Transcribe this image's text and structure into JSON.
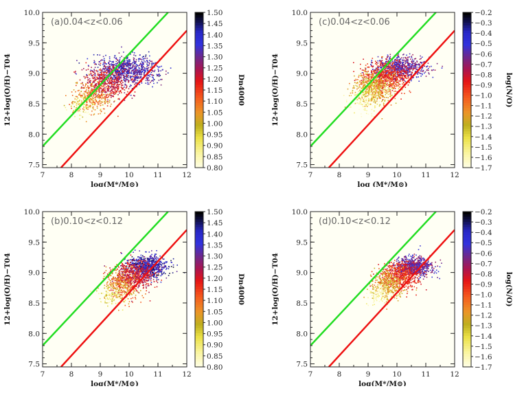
{
  "chart_data": [
    {
      "id": "a",
      "type": "scatter",
      "annotation": "(a)0.04<z<0.06",
      "xlabel": "log(M*/M⊙)",
      "ylabel": "12+log(O/H)−T04",
      "xlim": [
        7,
        12
      ],
      "ylim": [
        7.45,
        10.0
      ],
      "xticks": [
        "7",
        "8",
        "9",
        "10",
        "11",
        "12"
      ],
      "yticks": [
        "7.5",
        "8.0",
        "8.5",
        "9.0",
        "9.5",
        "10.0"
      ],
      "colorbar": {
        "label": "Dn4000",
        "min": 0.8,
        "max": 1.5,
        "ticks": [
          "1.50",
          "1.45",
          "1.40",
          "1.35",
          "1.30",
          "1.25",
          "1.20",
          "1.15",
          "1.10",
          "1.05",
          "1.00",
          "0.95",
          "0.90",
          "0.85",
          "0.80"
        ]
      },
      "lines": [
        {
          "color": "#22dd22",
          "points": [
            [
              7,
              7.8
            ],
            [
              11.35,
              10.0
            ]
          ]
        },
        {
          "color": "#ee1111",
          "points": [
            [
              7.64,
              7.45
            ],
            [
              12,
              9.7
            ]
          ]
        }
      ],
      "cloud": [
        {
          "x": 9.9,
          "y": 9.05,
          "sx": 0.55,
          "sy": 0.12,
          "n": 900,
          "c": [
            1.25,
            1.45
          ]
        },
        {
          "x": 9.2,
          "y": 8.85,
          "sx": 0.4,
          "sy": 0.14,
          "n": 500,
          "c": [
            1.15,
            1.28
          ]
        },
        {
          "x": 8.7,
          "y": 8.6,
          "sx": 0.35,
          "sy": 0.12,
          "n": 300,
          "c": [
            1.0,
            1.15
          ]
        },
        {
          "x": 8.4,
          "y": 8.5,
          "sx": 0.25,
          "sy": 0.1,
          "n": 120,
          "c": [
            0.8,
            1.0
          ]
        }
      ]
    },
    {
      "id": "c",
      "type": "scatter",
      "annotation": "(c)0.04<z<0.06",
      "xlabel": "log (M*/M⊙)",
      "ylabel": "12+log(O/H)−T04",
      "xlim": [
        7,
        12
      ],
      "ylim": [
        7.45,
        10.0
      ],
      "xticks": [
        "7",
        "8",
        "9",
        "10",
        "11",
        "12"
      ],
      "yticks": [
        "7.5",
        "8.0",
        "8.5",
        "9.0",
        "9.5",
        "10.0"
      ],
      "colorbar": {
        "label": "log(N/O)",
        "min": -1.7,
        "max": -0.2,
        "ticks": [
          "−0.2",
          "−0.3",
          "−0.4",
          "−0.5",
          "−0.6",
          "−0.7",
          "−0.8",
          "−0.9",
          "−1.0",
          "−1.1",
          "−1.2",
          "−1.3",
          "−1.4",
          "−1.5",
          "−1.6",
          "−1.7"
        ]
      },
      "lines": [
        {
          "color": "#22dd22",
          "points": [
            [
              7,
              7.8
            ],
            [
              11.35,
              10.0
            ]
          ]
        },
        {
          "color": "#ee1111",
          "points": [
            [
              7.64,
              7.45
            ],
            [
              12,
              9.7
            ]
          ]
        }
      ],
      "cloud": [
        {
          "x": 10.1,
          "y": 9.1,
          "sx": 0.45,
          "sy": 0.09,
          "n": 700,
          "c": [
            -0.75,
            -0.45
          ]
        },
        {
          "x": 9.6,
          "y": 8.95,
          "sx": 0.4,
          "sy": 0.12,
          "n": 600,
          "c": [
            -1.0,
            -0.8
          ]
        },
        {
          "x": 9.2,
          "y": 8.75,
          "sx": 0.35,
          "sy": 0.14,
          "n": 500,
          "c": [
            -1.4,
            -1.05
          ]
        },
        {
          "x": 8.9,
          "y": 8.6,
          "sx": 0.3,
          "sy": 0.12,
          "n": 150,
          "c": [
            -1.7,
            -1.4
          ]
        }
      ]
    },
    {
      "id": "b",
      "type": "scatter",
      "annotation": "(b)0.10<z<0.12",
      "xlabel": "log(M*/M⊙)",
      "ylabel": "12+log(O/H)−T04",
      "xlim": [
        7,
        12
      ],
      "ylim": [
        7.45,
        10.0
      ],
      "xticks": [
        "7",
        "8",
        "9",
        "10",
        "11",
        "12"
      ],
      "yticks": [
        "7.5",
        "8.0",
        "8.5",
        "9.0",
        "9.5",
        "10.0"
      ],
      "colorbar": {
        "label": "Dn4000",
        "min": 0.8,
        "max": 1.5,
        "ticks": [
          "1.50",
          "1.45",
          "1.40",
          "1.35",
          "1.30",
          "1.25",
          "1.20",
          "1.15",
          "1.10",
          "1.05",
          "1.00",
          "0.95",
          "0.90",
          "0.85",
          "0.80"
        ]
      },
      "lines": [
        {
          "color": "#22dd22",
          "points": [
            [
              7,
              7.8
            ],
            [
              11.35,
              10.0
            ]
          ]
        },
        {
          "color": "#ee1111",
          "points": [
            [
              7.64,
              7.45
            ],
            [
              12,
              9.7
            ]
          ]
        }
      ],
      "cloud": [
        {
          "x": 10.6,
          "y": 9.1,
          "sx": 0.35,
          "sy": 0.09,
          "n": 800,
          "c": [
            1.28,
            1.48
          ]
        },
        {
          "x": 10.1,
          "y": 8.95,
          "sx": 0.35,
          "sy": 0.12,
          "n": 600,
          "c": [
            1.15,
            1.28
          ]
        },
        {
          "x": 9.7,
          "y": 8.8,
          "sx": 0.3,
          "sy": 0.13,
          "n": 300,
          "c": [
            1.0,
            1.15
          ]
        },
        {
          "x": 9.4,
          "y": 8.65,
          "sx": 0.25,
          "sy": 0.1,
          "n": 120,
          "c": [
            0.8,
            1.0
          ]
        }
      ]
    },
    {
      "id": "d",
      "type": "scatter",
      "annotation": "(d)0.10<z<0.12",
      "xlabel": "log(M*/M⊙)",
      "ylabel": "12+log(O/H)−T04",
      "xlim": [
        7,
        12
      ],
      "ylim": [
        7.45,
        10.0
      ],
      "xticks": [
        "7",
        "8",
        "9",
        "10",
        "11",
        "12"
      ],
      "yticks": [
        "7.5",
        "8.0",
        "8.5",
        "9.0",
        "9.5",
        "10.0"
      ],
      "colorbar": {
        "label": "log(N/O)",
        "min": -1.7,
        "max": -0.2,
        "ticks": [
          "−0.2",
          "−0.3",
          "−0.4",
          "−0.5",
          "−0.6",
          "−0.7",
          "−0.8",
          "−0.9",
          "−1.0",
          "−1.1",
          "−1.2",
          "−1.3",
          "−1.4",
          "−1.5",
          "−1.6",
          "−1.7"
        ]
      },
      "lines": [
        {
          "color": "#22dd22",
          "points": [
            [
              7,
              7.8
            ],
            [
              11.35,
              10.0
            ]
          ]
        },
        {
          "color": "#ee1111",
          "points": [
            [
              7.64,
              7.45
            ],
            [
              12,
              9.7
            ]
          ]
        }
      ],
      "cloud": [
        {
          "x": 10.6,
          "y": 9.1,
          "sx": 0.35,
          "sy": 0.08,
          "n": 700,
          "c": [
            -0.75,
            -0.45
          ]
        },
        {
          "x": 10.1,
          "y": 8.95,
          "sx": 0.35,
          "sy": 0.11,
          "n": 550,
          "c": [
            -1.0,
            -0.8
          ]
        },
        {
          "x": 9.7,
          "y": 8.8,
          "sx": 0.3,
          "sy": 0.12,
          "n": 350,
          "c": [
            -1.35,
            -1.05
          ]
        },
        {
          "x": 9.4,
          "y": 8.65,
          "sx": 0.25,
          "sy": 0.1,
          "n": 120,
          "c": [
            -1.7,
            -1.4
          ]
        }
      ]
    }
  ]
}
